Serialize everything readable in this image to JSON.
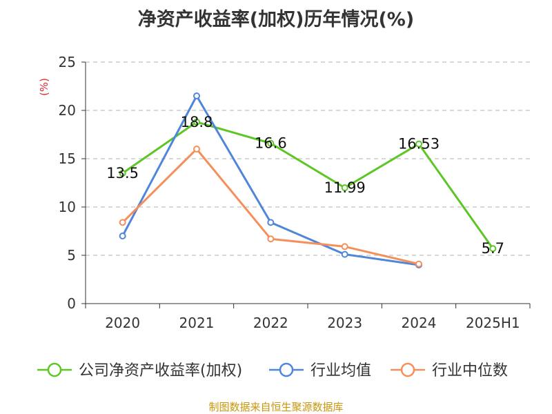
{
  "chart_data": {
    "type": "line",
    "title": "净资产收益率(加权)历年情况(%)",
    "ylabel": "(%)",
    "xlabel": "",
    "categories": [
      "2020",
      "2021",
      "2022",
      "2023",
      "2024",
      "2025H1"
    ],
    "ylim": [
      0,
      25
    ],
    "yticks": [
      0,
      5,
      10,
      15,
      20,
      25
    ],
    "grid": "horizontal-dashed",
    "legend_position": "bottom",
    "series": [
      {
        "name": "公司净资产收益率(加权)",
        "color": "#5cc624",
        "values": [
          13.5,
          18.8,
          16.6,
          11.99,
          16.53,
          5.7
        ],
        "labels": [
          "13.5",
          "18.8",
          "16.6",
          "11.99",
          "16.53",
          "5.7"
        ]
      },
      {
        "name": "行业均值",
        "color": "#4f86d9",
        "values": [
          7.0,
          21.5,
          8.4,
          5.1,
          4.0,
          null
        ]
      },
      {
        "name": "行业中位数",
        "color": "#f58f5a",
        "values": [
          8.4,
          16.0,
          6.7,
          5.9,
          4.1,
          null
        ]
      }
    ]
  },
  "footer": {
    "source": "制图数据来自恒生聚源数据库"
  }
}
